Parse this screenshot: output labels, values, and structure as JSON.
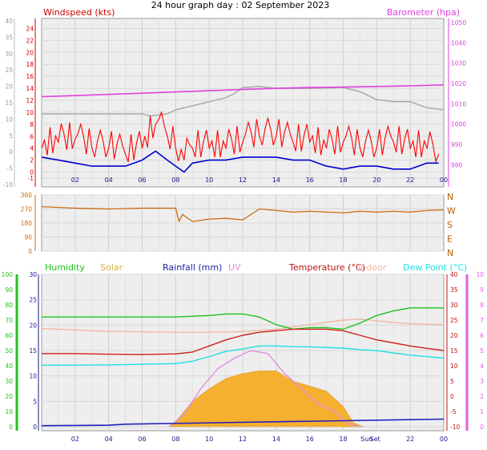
{
  "page": {
    "title": "24 hour graph day : 02 September 2023"
  },
  "colors": {
    "wind_gust": "#ff0000",
    "wind_avg": "#0000cc",
    "barometer": "#e040e0",
    "barometer_prev": "#aaaaaa",
    "direction": "#cc6a10",
    "humidity": "#20c020",
    "solar": "#f5b030",
    "rainfall": "#2020c0",
    "uv": "#e090e0",
    "temperature": "#d02020",
    "indoor": "#f0b8a0",
    "dewpoint": "#20e0e0",
    "panel_bg": "#eeeeee",
    "frame": "#999999"
  },
  "chart_data": [
    {
      "id": "wind-baro",
      "type": "line",
      "ylabel": "Windspeed (kts)",
      "ylabel_right": "Barometer (hpa)",
      "x_ticks": [
        "02",
        "04",
        "06",
        "08",
        "10",
        "12",
        "14",
        "16",
        "18",
        "20",
        "22",
        "00"
      ],
      "y_left": {
        "min": -1,
        "max": 25,
        "ticks": [
          -1,
          0,
          2,
          4,
          6,
          8,
          10,
          12,
          14,
          16,
          18,
          20,
          22,
          24
        ]
      },
      "y_right": {
        "min": 975,
        "max": 1050,
        "ticks": [
          980,
          990,
          1000,
          1010,
          1020,
          1030,
          1040,
          1050
        ],
        "minor_ticks": [
          960,
          970,
          980,
          990,
          1000,
          1010,
          1020,
          1030,
          1040,
          1050
        ]
      },
      "y_scale_outer": {
        "min": -10,
        "max": 40,
        "ticks": [
          -10,
          -5,
          0,
          5,
          10,
          15,
          20,
          25,
          30,
          35,
          40
        ]
      },
      "series": [
        {
          "name": "Barometer",
          "axis": "right",
          "x": [
            0,
            2,
            4,
            6,
            8,
            10,
            12,
            14,
            16,
            18,
            20,
            22,
            24
          ],
          "values": [
            1013.5,
            1014,
            1014.6,
            1015.2,
            1015.8,
            1016.4,
            1017,
            1017.6,
            1018,
            1018.2,
            1018.5,
            1018.8,
            1019.3
          ]
        },
        {
          "axis": "right",
          "x": [
            0,
            3,
            6,
            6.5,
            7.5,
            8,
            9,
            10,
            11,
            11.5,
            12,
            13,
            14,
            16,
            18,
            19,
            20,
            21,
            22,
            23,
            24
          ],
          "values": [
            1005,
            1005,
            1005,
            1004,
            1005,
            1007,
            1009,
            1011,
            1013,
            1015,
            1018,
            1018.5,
            1017.5,
            1017.5,
            1018,
            1016,
            1012,
            1011,
            1011,
            1008,
            1007
          ]
        },
        {
          "name": "Gust",
          "axis": "left",
          "x": [
            0,
            1,
            2,
            3,
            4,
            5,
            6,
            6.8,
            7.5,
            8,
            8.5,
            9,
            10,
            11,
            12,
            13,
            14,
            15,
            16,
            17,
            18,
            19,
            20,
            21,
            22,
            23,
            23.7
          ],
          "values": [
            4,
            5,
            5.5,
            4,
            4,
            3,
            4,
            8,
            6,
            4,
            2,
            4,
            4,
            4,
            5,
            6,
            6,
            5,
            5,
            4,
            5,
            4,
            4,
            5,
            4,
            4,
            3
          ]
        },
        {
          "name": "Average",
          "axis": "left",
          "x": [
            0,
            1,
            2,
            3,
            4,
            5,
            6,
            6.8,
            7.5,
            8,
            8.5,
            9,
            10,
            11,
            12,
            13,
            14,
            15,
            16,
            17,
            18,
            19,
            20,
            21,
            22,
            23,
            23.7
          ],
          "values": [
            2.5,
            2,
            1.5,
            1,
            1,
            1,
            2,
            3.5,
            2,
            1,
            0,
            1.5,
            2,
            2,
            2.5,
            2.5,
            2.5,
            2,
            2,
            1,
            0.5,
            1,
            1,
            0.5,
            0.5,
            1.5,
            1.5
          ]
        }
      ]
    },
    {
      "id": "direction",
      "type": "line",
      "y_left": {
        "min": 0,
        "max": 360,
        "ticks": [
          0,
          90,
          180,
          270,
          360
        ]
      },
      "compass_labels": [
        "N",
        "W",
        "S",
        "E",
        "N"
      ],
      "series": [
        {
          "name": "Wind direction",
          "x": [
            0,
            2,
            4,
            6,
            8,
            8.2,
            8.4,
            9,
            10,
            11,
            12,
            13,
            14,
            15,
            16,
            17,
            18,
            19,
            20,
            21,
            22,
            23,
            24
          ],
          "values": [
            285,
            275,
            270,
            275,
            275,
            190,
            235,
            190,
            205,
            210,
            200,
            270,
            260,
            250,
            255,
            250,
            245,
            255,
            250,
            255,
            250,
            260,
            265
          ]
        }
      ]
    },
    {
      "id": "multi",
      "type": "line",
      "legend": [
        "Humidity",
        "Solar",
        "Rainfall (mm)",
        "UV",
        "Temperature (°C)",
        "Indoor",
        "Dew Point (°C)"
      ],
      "x_ticks": [
        "02",
        "04",
        "06",
        "08",
        "10",
        "12",
        "14",
        "16",
        "18",
        "Sun",
        "Set",
        "22",
        "00"
      ],
      "x_tick_positions": [
        2,
        4,
        6,
        8,
        10,
        12,
        14,
        16,
        18,
        19.4,
        19.9,
        22,
        24
      ],
      "y_humidity": {
        "min": 0,
        "max": 100,
        "ticks": [
          0,
          10,
          20,
          30,
          40,
          50,
          60,
          70,
          80,
          90,
          100
        ]
      },
      "y_main": {
        "min": 0,
        "max": 30,
        "ticks": [
          0,
          5,
          10,
          15,
          20,
          25,
          30
        ]
      },
      "y_temp": {
        "min": -10,
        "max": 40,
        "ticks": [
          -10,
          -5,
          0,
          5,
          10,
          15,
          20,
          25,
          30,
          35,
          40
        ]
      },
      "y_uv": {
        "min": 0,
        "max": 10,
        "ticks": [
          0,
          1,
          2,
          3,
          4,
          5,
          6,
          7,
          8,
          9,
          10
        ]
      },
      "series": [
        {
          "name": "Humidity",
          "axis": "humidity",
          "x": [
            0,
            4,
            8,
            10,
            11,
            12,
            13,
            14,
            15,
            16,
            17,
            18,
            19,
            20,
            21,
            22,
            23,
            24
          ],
          "values": [
            72,
            72,
            72,
            73,
            74,
            74,
            72,
            67,
            64,
            65,
            65,
            64,
            68,
            73,
            76,
            78,
            78,
            78
          ]
        },
        {
          "name": "Indoor",
          "axis": "temp",
          "x": [
            0,
            4,
            8,
            10,
            12,
            14,
            16,
            18,
            19,
            20,
            21,
            22,
            24
          ],
          "values": [
            22.2,
            21.3,
            21.0,
            21.0,
            21.2,
            22.0,
            23.5,
            25.0,
            25.3,
            24.8,
            24.2,
            23.8,
            23.5
          ]
        },
        {
          "name": "Temperature (°C)",
          "axis": "temp",
          "x": [
            0,
            2,
            4,
            6,
            8,
            9,
            10,
            11,
            12,
            13,
            14,
            15,
            16,
            17,
            18,
            19,
            20,
            21,
            22,
            23,
            24
          ],
          "values": [
            14,
            14,
            13.8,
            13.7,
            13.9,
            14.5,
            16.5,
            18.5,
            20,
            21,
            21.5,
            22,
            22,
            22,
            21.5,
            20,
            18.5,
            17.5,
            16.5,
            15.7,
            15
          ]
        },
        {
          "name": "Dew Point (°C)",
          "axis": "temp",
          "x": [
            0,
            2,
            4,
            6,
            8,
            9,
            10,
            11,
            12,
            13,
            14,
            15,
            16,
            17,
            18,
            19,
            20,
            21,
            22,
            23,
            24
          ],
          "values": [
            10.2,
            10.2,
            10.3,
            10.5,
            10.7,
            11.5,
            13,
            14.7,
            15.5,
            16.5,
            16.5,
            16.3,
            16.2,
            16,
            15.8,
            15.3,
            15,
            14.2,
            13.5,
            13,
            12.5
          ]
        },
        {
          "name": "Solar",
          "axis": "main",
          "x": [
            7.6,
            8,
            9,
            10,
            11,
            12,
            13,
            14,
            15,
            16,
            17,
            18,
            18.6,
            19.2
          ],
          "values": [
            0,
            1,
            5,
            7.5,
            9.5,
            10.5,
            11,
            11,
            9,
            8,
            7,
            4,
            0.8,
            0
          ]
        },
        {
          "name": "UV",
          "axis": "uv",
          "x": [
            7.6,
            8.5,
            9.5,
            10.5,
            11.5,
            12.5,
            13.5,
            14.5,
            15.5,
            16.5,
            17.5,
            18.3,
            19
          ],
          "values": [
            0,
            0.8,
            2.5,
            3.8,
            4.5,
            5,
            4.8,
            3.5,
            2.5,
            1.5,
            1,
            0.2,
            0
          ]
        },
        {
          "name": "Rainfall (mm)",
          "axis": "main",
          "x": [
            0,
            4,
            5,
            24
          ],
          "values": [
            0.2,
            0.3,
            0.5,
            1.5
          ]
        }
      ]
    }
  ]
}
